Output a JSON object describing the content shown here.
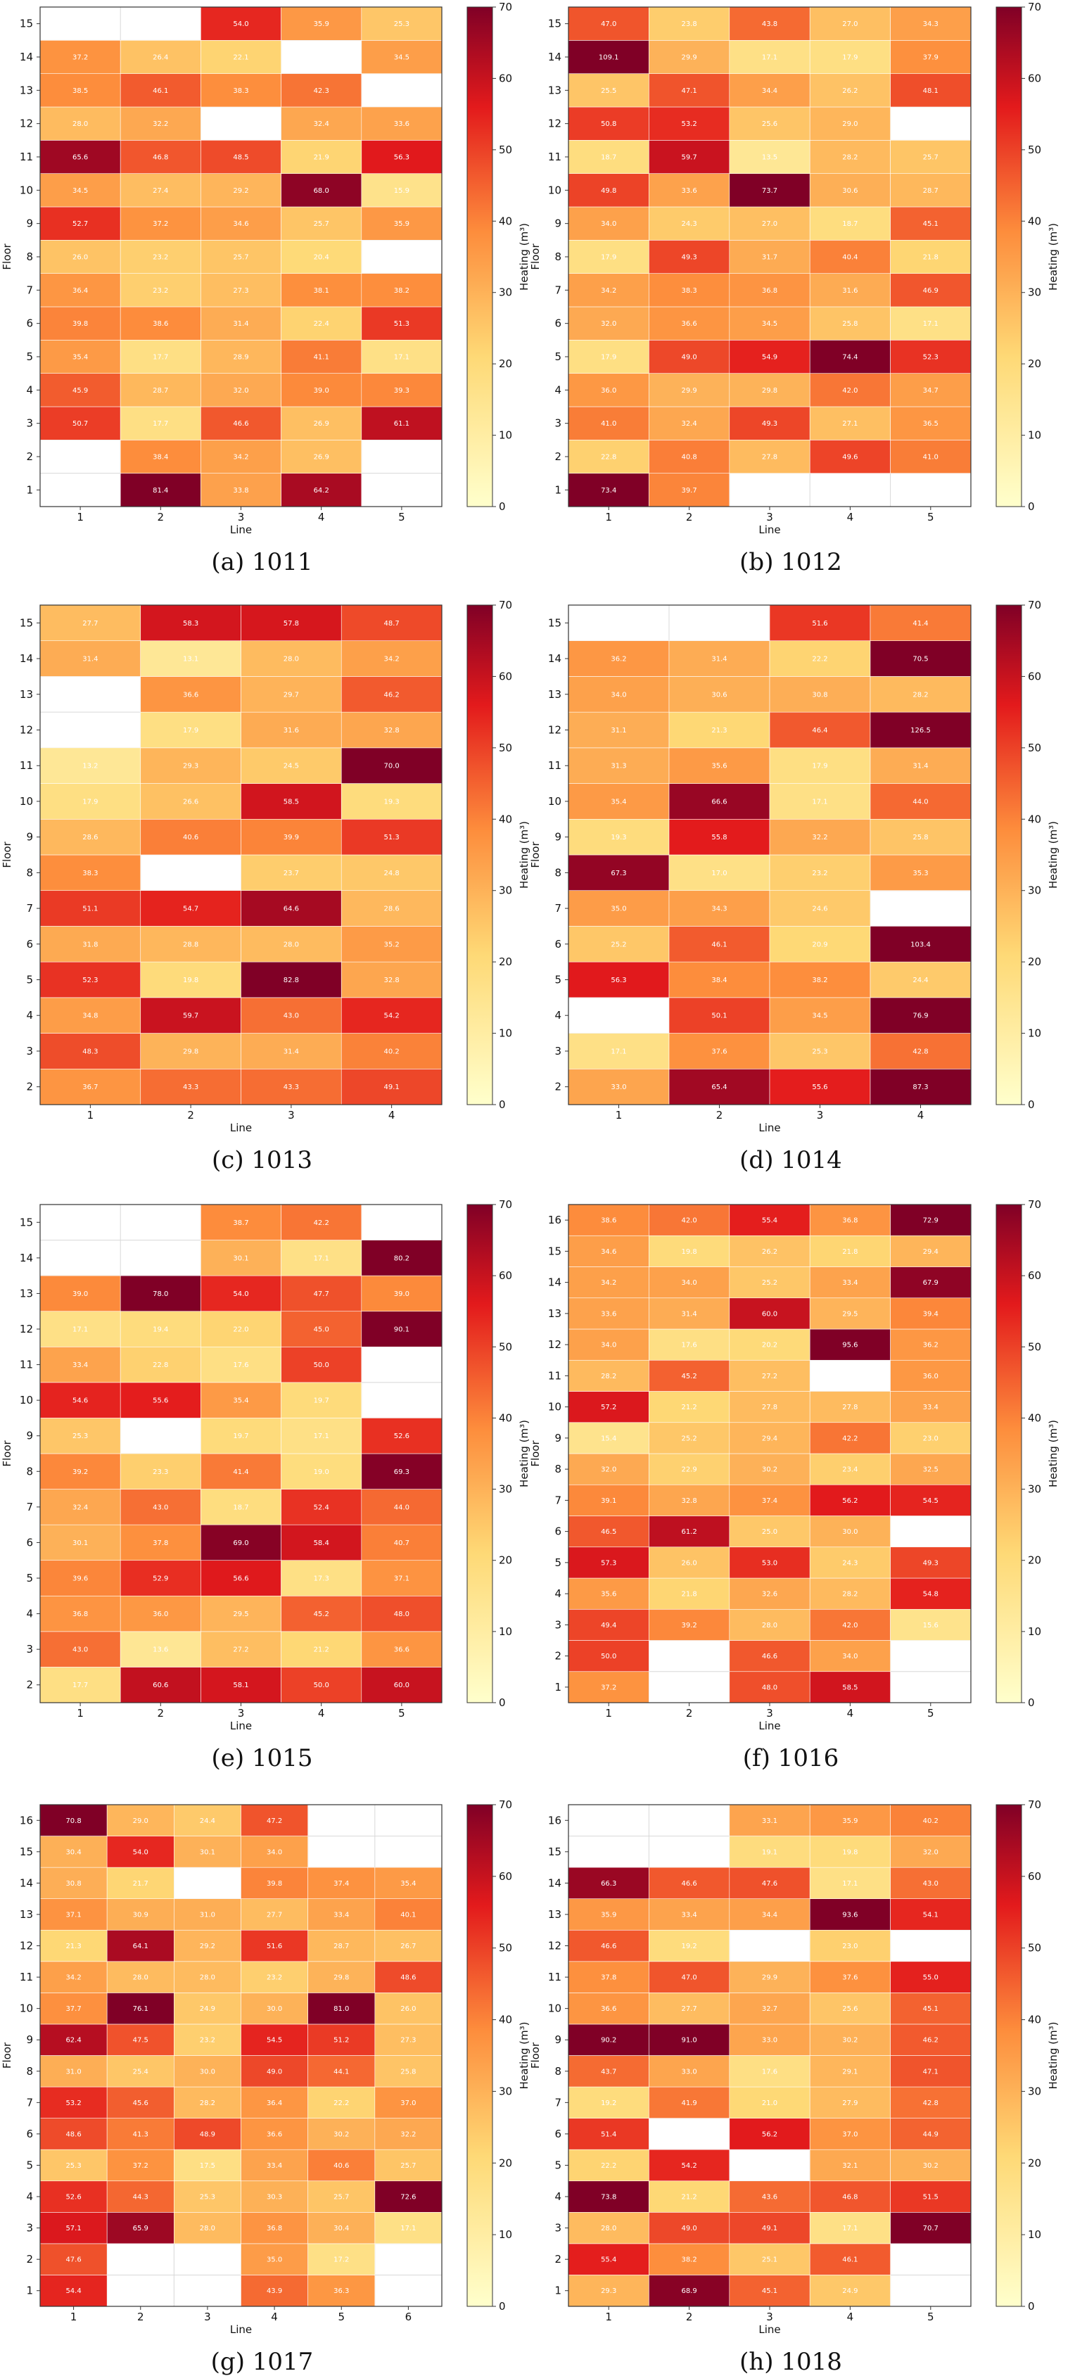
{
  "colorbar": {
    "max": 70,
    "min": 0,
    "ticks": [
      0,
      10,
      20,
      30,
      40,
      50,
      60,
      70
    ],
    "label": "Heating (m³)"
  },
  "axis_labels": {
    "x": "Line",
    "y": "Floor"
  },
  "colors": {
    "low": "#ffffcc",
    "mid1": "#fed976",
    "mid2": "#fd8d3c",
    "mid3": "#e31a1c",
    "high": "#800026",
    "grid": "#d8d8d8"
  },
  "chart_data": [
    {
      "type": "heatmap",
      "caption": "(a) 1011",
      "xlabel": "Line",
      "ylabel": "Floor",
      "lines": [
        1,
        2,
        3,
        4,
        5
      ],
      "floors": [
        1,
        2,
        3,
        4,
        5,
        6,
        7,
        8,
        9,
        10,
        11,
        12,
        13,
        14,
        15
      ],
      "values": [
        [
          null,
          81.4,
          33.8,
          64.2,
          null
        ],
        [
          null,
          38.4,
          34.2,
          26.9,
          null
        ],
        [
          50.7,
          17.7,
          46.6,
          26.9,
          61.1
        ],
        [
          45.9,
          28.7,
          32.0,
          39.0,
          39.3
        ],
        [
          35.4,
          17.7,
          28.9,
          41.1,
          17.1
        ],
        [
          39.8,
          38.6,
          31.4,
          22.4,
          51.3
        ],
        [
          36.4,
          23.2,
          27.3,
          38.1,
          38.2
        ],
        [
          26.0,
          23.2,
          25.7,
          20.4,
          null
        ],
        [
          52.7,
          37.2,
          34.6,
          25.7,
          35.9
        ],
        [
          34.5,
          27.4,
          29.2,
          68.0,
          15.9
        ],
        [
          65.6,
          46.8,
          48.5,
          21.9,
          56.3
        ],
        [
          28.0,
          32.2,
          null,
          32.4,
          33.6
        ],
        [
          38.5,
          46.1,
          38.3,
          42.3,
          null
        ],
        [
          37.2,
          26.4,
          22.1,
          null,
          34.5
        ],
        [
          null,
          null,
          54.0,
          35.9,
          25.3
        ]
      ]
    },
    {
      "type": "heatmap",
      "caption": "(b) 1012",
      "xlabel": "Line",
      "ylabel": "Floor",
      "lines": [
        1,
        2,
        3,
        4,
        5
      ],
      "floors": [
        1,
        2,
        3,
        4,
        5,
        6,
        7,
        8,
        9,
        10,
        11,
        12,
        13,
        14,
        15
      ],
      "values": [
        [
          73.4,
          39.7,
          null,
          null,
          null
        ],
        [
          22.8,
          40.8,
          27.8,
          49.6,
          41.0
        ],
        [
          41.0,
          32.4,
          49.3,
          27.1,
          36.5
        ],
        [
          36.0,
          29.9,
          29.8,
          42.0,
          34.7
        ],
        [
          17.9,
          49.0,
          54.9,
          74.4,
          52.3
        ],
        [
          32.0,
          36.6,
          34.5,
          25.8,
          17.1
        ],
        [
          34.2,
          38.3,
          36.8,
          31.6,
          46.9
        ],
        [
          17.9,
          49.3,
          31.7,
          40.4,
          21.8
        ],
        [
          34.0,
          24.3,
          27.0,
          18.7,
          45.1
        ],
        [
          49.8,
          33.6,
          73.7,
          30.6,
          28.7
        ],
        [
          18.7,
          59.7,
          13.5,
          28.2,
          25.7
        ],
        [
          50.8,
          53.2,
          25.6,
          29.0,
          null
        ],
        [
          25.5,
          47.1,
          34.4,
          26.2,
          48.1
        ],
        [
          109.1,
          29.9,
          17.1,
          17.9,
          37.9
        ],
        [
          47.0,
          23.8,
          43.8,
          27.0,
          34.3
        ]
      ]
    },
    {
      "type": "heatmap",
      "caption": "(c) 1013",
      "xlabel": "Line",
      "ylabel": "Floor",
      "lines": [
        1,
        2,
        3,
        4
      ],
      "floors": [
        2,
        3,
        4,
        5,
        6,
        7,
        8,
        9,
        10,
        11,
        12,
        13,
        14,
        15
      ],
      "values": [
        [
          36.7,
          43.3,
          43.3,
          49.1
        ],
        [
          48.3,
          29.8,
          31.4,
          40.2
        ],
        [
          34.8,
          59.7,
          43.0,
          54.2
        ],
        [
          52.3,
          19.8,
          82.8,
          32.8
        ],
        [
          31.8,
          28.8,
          28.0,
          35.2
        ],
        [
          51.1,
          54.7,
          64.6,
          28.6
        ],
        [
          38.3,
          null,
          23.7,
          24.8
        ],
        [
          28.6,
          40.6,
          39.9,
          51.3
        ],
        [
          17.9,
          26.6,
          58.5,
          19.3
        ],
        [
          13.2,
          29.3,
          24.5,
          70.0
        ],
        [
          null,
          17.9,
          31.6,
          32.8
        ],
        [
          null,
          36.6,
          29.7,
          46.2
        ],
        [
          31.4,
          13.1,
          28.0,
          34.2
        ],
        [
          27.7,
          58.3,
          57.8,
          48.7
        ]
      ]
    },
    {
      "type": "heatmap",
      "caption": "(d) 1014",
      "xlabel": "Line",
      "ylabel": "Floor",
      "lines": [
        1,
        2,
        3,
        4
      ],
      "floors": [
        2,
        3,
        4,
        5,
        6,
        7,
        8,
        9,
        10,
        11,
        12,
        13,
        14,
        15
      ],
      "values": [
        [
          33.0,
          65.4,
          55.6,
          87.3
        ],
        [
          17.1,
          37.6,
          25.3,
          42.8
        ],
        [
          null,
          50.1,
          34.5,
          76.9
        ],
        [
          56.3,
          38.4,
          38.2,
          24.4
        ],
        [
          25.2,
          46.1,
          20.9,
          103.4
        ],
        [
          35.0,
          34.3,
          24.6,
          null
        ],
        [
          67.3,
          17.0,
          23.2,
          35.3
        ],
        [
          19.3,
          55.8,
          32.2,
          25.8
        ],
        [
          35.4,
          66.6,
          17.1,
          44.0
        ],
        [
          31.3,
          35.6,
          17.9,
          31.4
        ],
        [
          31.1,
          21.3,
          46.4,
          126.5
        ],
        [
          34.0,
          30.6,
          30.8,
          28.2
        ],
        [
          36.2,
          31.4,
          22.2,
          70.5
        ],
        [
          null,
          null,
          51.6,
          41.4
        ]
      ]
    },
    {
      "type": "heatmap",
      "caption": "(e) 1015",
      "xlabel": "Line",
      "ylabel": "Floor",
      "lines": [
        1,
        2,
        3,
        4,
        5
      ],
      "floors": [
        2,
        3,
        4,
        5,
        6,
        7,
        8,
        9,
        10,
        11,
        12,
        13,
        14,
        15
      ],
      "values": [
        [
          17.7,
          60.6,
          58.1,
          50.0,
          60.0
        ],
        [
          43.0,
          13.6,
          27.2,
          21.2,
          36.6
        ],
        [
          36.8,
          36.0,
          29.5,
          45.2,
          48.0
        ],
        [
          39.6,
          52.9,
          56.6,
          17.3,
          37.1
        ],
        [
          30.1,
          37.8,
          69.0,
          58.4,
          40.7
        ],
        [
          32.4,
          43.0,
          18.7,
          52.4,
          44.0
        ],
        [
          39.2,
          23.3,
          41.4,
          19.0,
          69.3
        ],
        [
          25.3,
          null,
          19.7,
          17.1,
          52.6
        ],
        [
          54.6,
          55.6,
          35.4,
          19.7,
          null
        ],
        [
          33.4,
          22.8,
          17.6,
          50.0,
          null
        ],
        [
          17.1,
          19.4,
          22.0,
          45.0,
          90.1
        ],
        [
          39.0,
          78.0,
          54.0,
          47.7,
          39.0
        ],
        [
          null,
          null,
          30.1,
          17.1,
          80.2
        ],
        [
          null,
          null,
          38.7,
          42.2,
          null
        ]
      ]
    },
    {
      "type": "heatmap",
      "caption": "(f) 1016",
      "xlabel": "Line",
      "ylabel": "Floor",
      "lines": [
        1,
        2,
        3,
        4,
        5
      ],
      "floors": [
        1,
        2,
        3,
        4,
        5,
        6,
        7,
        8,
        9,
        10,
        11,
        12,
        13,
        14,
        15,
        16
      ],
      "values": [
        [
          37.2,
          null,
          48.0,
          58.5,
          null
        ],
        [
          50.0,
          null,
          46.6,
          34.0,
          null
        ],
        [
          49.4,
          39.2,
          28.0,
          42.0,
          15.6
        ],
        [
          35.6,
          21.8,
          32.6,
          28.2,
          54.8
        ],
        [
          57.3,
          26.0,
          53.0,
          24.3,
          49.3
        ],
        [
          46.5,
          61.2,
          25.0,
          30.0,
          null
        ],
        [
          39.1,
          32.8,
          37.4,
          56.2,
          54.5
        ],
        [
          32.0,
          22.9,
          30.2,
          23.4,
          32.5
        ],
        [
          15.4,
          25.2,
          29.4,
          42.2,
          23.0
        ],
        [
          57.2,
          21.2,
          27.8,
          27.8,
          33.4
        ],
        [
          28.2,
          45.2,
          27.2,
          null,
          36.0
        ],
        [
          34.0,
          17.6,
          20.2,
          95.6,
          36.2
        ],
        [
          33.6,
          31.4,
          60.0,
          29.5,
          39.4
        ],
        [
          34.2,
          34.0,
          25.2,
          33.4,
          67.9
        ],
        [
          34.6,
          19.8,
          26.2,
          21.8,
          29.4
        ],
        [
          38.6,
          42.0,
          55.4,
          36.8,
          72.9
        ]
      ]
    },
    {
      "type": "heatmap",
      "caption": "(g) 1017",
      "xlabel": "Line",
      "ylabel": "Floor",
      "lines": [
        1,
        2,
        3,
        4,
        5,
        6
      ],
      "floors": [
        1,
        2,
        3,
        4,
        5,
        6,
        7,
        8,
        9,
        10,
        11,
        12,
        13,
        14,
        15,
        16
      ],
      "values": [
        [
          54.4,
          null,
          null,
          43.9,
          36.3,
          null
        ],
        [
          47.6,
          null,
          null,
          35.0,
          17.2,
          null
        ],
        [
          57.1,
          65.9,
          28.0,
          36.8,
          30.4,
          17.1
        ],
        [
          52.6,
          44.3,
          25.3,
          30.3,
          25.7,
          72.6
        ],
        [
          25.3,
          37.2,
          17.5,
          33.4,
          40.6,
          25.7
        ],
        [
          48.6,
          41.3,
          48.9,
          36.6,
          30.2,
          32.2
        ],
        [
          53.2,
          45.6,
          28.2,
          36.4,
          22.2,
          37.0
        ],
        [
          31.0,
          25.4,
          30.0,
          49.0,
          44.1,
          25.8
        ],
        [
          62.4,
          47.5,
          23.2,
          54.5,
          51.2,
          27.3
        ],
        [
          37.7,
          76.1,
          24.9,
          30.0,
          81.0,
          26.0
        ],
        [
          34.2,
          28.0,
          28.0,
          23.2,
          29.8,
          48.6
        ],
        [
          21.3,
          64.1,
          29.2,
          51.6,
          28.7,
          26.7
        ],
        [
          37.1,
          30.9,
          31.0,
          27.7,
          33.4,
          40.1
        ],
        [
          30.8,
          21.7,
          null,
          39.8,
          37.4,
          35.4
        ],
        [
          30.4,
          54.0,
          30.1,
          34.0,
          null,
          null
        ],
        [
          70.8,
          29.0,
          24.4,
          47.2,
          null,
          null
        ]
      ]
    },
    {
      "type": "heatmap",
      "caption": "(h) 1018",
      "xlabel": "Line",
      "ylabel": "Floor",
      "lines": [
        1,
        2,
        3,
        4,
        5
      ],
      "floors": [
        1,
        2,
        3,
        4,
        5,
        6,
        7,
        8,
        9,
        10,
        11,
        12,
        13,
        14,
        15,
        16
      ],
      "values": [
        [
          29.3,
          68.9,
          45.1,
          24.9,
          null
        ],
        [
          55.4,
          38.2,
          25.1,
          46.1,
          null
        ],
        [
          28.0,
          49.0,
          49.1,
          17.1,
          70.7
        ],
        [
          73.8,
          21.2,
          43.6,
          46.8,
          51.5
        ],
        [
          22.2,
          54.2,
          null,
          32.1,
          30.2
        ],
        [
          51.4,
          null,
          56.2,
          37.0,
          44.9
        ],
        [
          19.2,
          41.9,
          21.0,
          27.9,
          42.8
        ],
        [
          43.7,
          33.0,
          17.6,
          29.1,
          47.1
        ],
        [
          90.2,
          91.0,
          33.0,
          30.2,
          46.2
        ],
        [
          36.6,
          27.7,
          32.7,
          25.6,
          45.1
        ],
        [
          37.8,
          47.0,
          29.9,
          37.6,
          55.0
        ],
        [
          46.6,
          19.2,
          null,
          23.0,
          null
        ],
        [
          35.9,
          33.4,
          34.4,
          93.6,
          54.1
        ],
        [
          66.3,
          46.6,
          47.6,
          17.1,
          43.0
        ],
        [
          null,
          null,
          19.1,
          19.8,
          32.0
        ],
        [
          null,
          null,
          33.1,
          35.9,
          40.2
        ]
      ]
    }
  ]
}
